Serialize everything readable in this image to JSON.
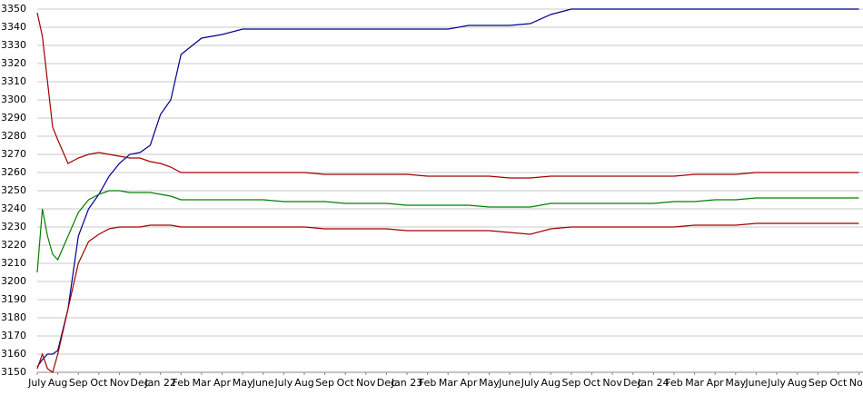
{
  "chart_data": {
    "type": "line",
    "x": [
      0,
      0.25,
      0.5,
      0.75,
      1,
      1.5,
      2,
      2.5,
      3,
      3.5,
      4,
      4.5,
      5,
      5.5,
      6,
      6.5,
      7,
      8,
      9,
      10,
      11,
      12,
      13,
      14,
      15,
      16,
      17,
      18,
      19,
      20,
      21,
      22,
      23,
      24,
      25,
      26,
      27,
      28,
      29,
      30,
      31,
      32,
      33,
      34,
      35,
      36,
      37,
      38,
      39,
      40
    ],
    "series": [
      {
        "color": "#00008b",
        "values": [
          3153,
          3157,
          3160,
          3160,
          3162,
          3185,
          3225,
          3240,
          3248,
          3258,
          3265,
          3270,
          3271,
          3275,
          3292,
          3300,
          3325,
          3334,
          3336,
          3339,
          3339,
          3339,
          3339,
          3339,
          3339,
          3339,
          3339,
          3339,
          3339,
          3339,
          3341,
          3341,
          3341,
          3342,
          3347,
          3350,
          3350,
          3350,
          3350,
          3350,
          3350,
          3350,
          3350,
          3350,
          3350,
          3350,
          3350,
          3350,
          3350,
          3350
        ]
      },
      {
        "color": "#008000",
        "values": [
          3205,
          3240,
          3225,
          3215,
          3212,
          3225,
          3238,
          3245,
          3248,
          3250,
          3250,
          3249,
          3249,
          3249,
          3248,
          3247,
          3245,
          3245,
          3245,
          3245,
          3245,
          3244,
          3244,
          3244,
          3243,
          3243,
          3243,
          3242,
          3242,
          3242,
          3242,
          3241,
          3241,
          3241,
          3243,
          3243,
          3243,
          3243,
          3243,
          3243,
          3244,
          3244,
          3245,
          3245,
          3246,
          3246,
          3246,
          3246,
          3246,
          3246
        ]
      },
      {
        "color": "#a00000",
        "values": [
          3348,
          3335,
          3310,
          3285,
          3278,
          3265,
          3268,
          3270,
          3271,
          3270,
          3269,
          3268,
          3268,
          3266,
          3265,
          3263,
          3260,
          3260,
          3260,
          3260,
          3260,
          3260,
          3260,
          3259,
          3259,
          3259,
          3259,
          3259,
          3258,
          3258,
          3258,
          3258,
          3257,
          3257,
          3258,
          3258,
          3258,
          3258,
          3258,
          3258,
          3258,
          3259,
          3259,
          3259,
          3260,
          3260,
          3260,
          3260,
          3260,
          3260
        ]
      },
      {
        "color": "#a00000",
        "values": [
          3152,
          3160,
          3152,
          3150,
          3160,
          3185,
          3210,
          3222,
          3226,
          3229,
          3230,
          3230,
          3230,
          3231,
          3231,
          3231,
          3230,
          3230,
          3230,
          3230,
          3230,
          3230,
          3230,
          3229,
          3229,
          3229,
          3229,
          3228,
          3228,
          3228,
          3228,
          3228,
          3227,
          3226,
          3229,
          3230,
          3230,
          3230,
          3230,
          3230,
          3230,
          3231,
          3231,
          3231,
          3232,
          3232,
          3232,
          3232,
          3232,
          3232
        ]
      }
    ],
    "xlim": [
      0,
      40.2
    ],
    "xticks": [
      {
        "value": 0,
        "label": "July"
      },
      {
        "value": 1,
        "label": "Aug"
      },
      {
        "value": 2,
        "label": "Sep"
      },
      {
        "value": 3,
        "label": "Oct"
      },
      {
        "value": 4,
        "label": "Nov"
      },
      {
        "value": 5,
        "label": "Dec"
      },
      {
        "value": 6,
        "label": "Jan 22"
      },
      {
        "value": 7,
        "label": "Feb"
      },
      {
        "value": 8,
        "label": "Mar"
      },
      {
        "value": 9,
        "label": "Apr"
      },
      {
        "value": 10,
        "label": "May"
      },
      {
        "value": 11,
        "label": "June"
      },
      {
        "value": 12,
        "label": "July"
      },
      {
        "value": 13,
        "label": "Aug"
      },
      {
        "value": 14,
        "label": "Sep"
      },
      {
        "value": 15,
        "label": "Oct"
      },
      {
        "value": 16,
        "label": "Nov"
      },
      {
        "value": 17,
        "label": "Dec"
      },
      {
        "value": 18,
        "label": "Jan 23"
      },
      {
        "value": 19,
        "label": "Feb"
      },
      {
        "value": 20,
        "label": "Mar"
      },
      {
        "value": 21,
        "label": "Apr"
      },
      {
        "value": 22,
        "label": "May"
      },
      {
        "value": 23,
        "label": "June"
      },
      {
        "value": 24,
        "label": "July"
      },
      {
        "value": 25,
        "label": "Aug"
      },
      {
        "value": 26,
        "label": "Sep"
      },
      {
        "value": 27,
        "label": "Oct"
      },
      {
        "value": 28,
        "label": "Nov"
      },
      {
        "value": 29,
        "label": "Dec"
      },
      {
        "value": 30,
        "label": "Jan 24"
      },
      {
        "value": 31,
        "label": "Feb"
      },
      {
        "value": 32,
        "label": "Mar"
      },
      {
        "value": 33,
        "label": "Apr"
      },
      {
        "value": 34,
        "label": "May"
      },
      {
        "value": 35,
        "label": "June"
      },
      {
        "value": 36,
        "label": "July"
      },
      {
        "value": 37,
        "label": "Aug"
      },
      {
        "value": 38,
        "label": "Sep"
      },
      {
        "value": 39,
        "label": "Oct"
      },
      {
        "value": 40,
        "label": "Nov"
      }
    ],
    "ylim": [
      3150,
      3350
    ],
    "yticks": [
      3150,
      3160,
      3170,
      3180,
      3190,
      3200,
      3210,
      3220,
      3230,
      3240,
      3250,
      3260,
      3270,
      3280,
      3290,
      3300,
      3310,
      3320,
      3330,
      3340,
      3350
    ],
    "grid": true
  }
}
